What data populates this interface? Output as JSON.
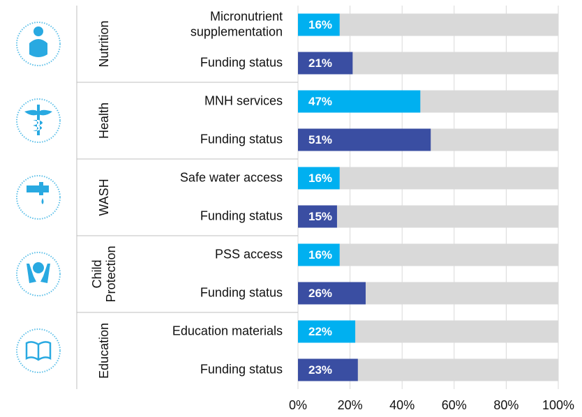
{
  "chart_data": {
    "type": "bar",
    "groups": [
      {
        "label": [
          "Nutrition"
        ],
        "categories": [
          [
            "Micronutrient",
            "supplementation"
          ],
          [
            "Funding status"
          ]
        ],
        "values": [
          16,
          21
        ],
        "value_labels": [
          "16%",
          "21%"
        ]
      },
      {
        "label": [
          "Health"
        ],
        "categories": [
          [
            "MNH services"
          ],
          [
            "Funding status"
          ]
        ],
        "values": [
          47,
          51
        ],
        "value_labels": [
          "47%",
          "51%"
        ]
      },
      {
        "label": [
          "WASH"
        ],
        "categories": [
          [
            "Safe water access"
          ],
          [
            "Funding status"
          ]
        ],
        "values": [
          16,
          15
        ],
        "value_labels": [
          "16%",
          "15%"
        ]
      },
      {
        "label": [
          "Child",
          "Protection"
        ],
        "categories": [
          [
            "PSS access"
          ],
          [
            "Funding status"
          ]
        ],
        "values": [
          16,
          26
        ],
        "value_labels": [
          "16%",
          "26%"
        ]
      },
      {
        "label": [
          "Education"
        ],
        "categories": [
          [
            "Education materials"
          ],
          [
            "Funding status"
          ]
        ],
        "values": [
          22,
          23
        ],
        "value_labels": [
          "22%",
          "23%"
        ]
      }
    ],
    "colors": [
      "#00b0f0",
      "#3a4ea2"
    ],
    "track_color": "#d9d9d9",
    "xlim": [
      0,
      100
    ],
    "xticks": [
      {
        "value": 0,
        "label": "0%"
      },
      {
        "value": 20,
        "label": "20%"
      },
      {
        "value": 40,
        "label": "40%"
      },
      {
        "value": 60,
        "label": "60%"
      },
      {
        "value": 80,
        "label": "80%"
      },
      {
        "value": 100,
        "label": "100%"
      }
    ],
    "grid": true
  }
}
